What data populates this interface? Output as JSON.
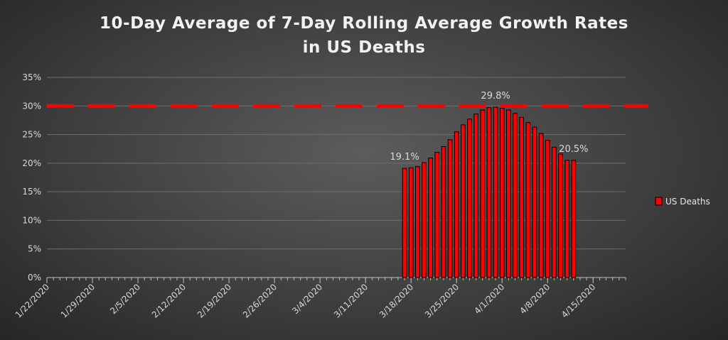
{
  "chart_data": {
    "type": "bar",
    "title_lines": [
      "10-Day Average of 7-Day Rolling Average Growth Rates",
      "in US Deaths"
    ],
    "xlabel": "",
    "ylabel": "",
    "ylim": [
      0,
      0.35
    ],
    "y_ticks": [
      "0%",
      "5%",
      "10%",
      "15%",
      "20%",
      "25%",
      "30%",
      "35%"
    ],
    "y_tick_values": [
      0,
      0.05,
      0.1,
      0.15,
      0.2,
      0.25,
      0.3,
      0.35
    ],
    "x_start": "1/22/2020",
    "x_end": "4/20/2020",
    "x_tick_labels": [
      "1/22/2020",
      "1/29/2020",
      "2/5/2020",
      "2/12/2020",
      "2/19/2020",
      "2/26/2020",
      "3/4/2020",
      "3/11/2020",
      "3/18/2020",
      "3/25/2020",
      "4/1/2020",
      "4/8/2020",
      "4/15/2020"
    ],
    "reference_line": {
      "value": 0.3,
      "color": "#ff0000",
      "style": "dashed"
    },
    "series": [
      {
        "name": "US Deaths",
        "color": "#ff0000",
        "x": [
          "3/17/2020",
          "3/18/2020",
          "3/19/2020",
          "3/20/2020",
          "3/21/2020",
          "3/22/2020",
          "3/23/2020",
          "3/24/2020",
          "3/25/2020",
          "3/26/2020",
          "3/27/2020",
          "3/28/2020",
          "3/29/2020",
          "3/30/2020",
          "3/31/2020",
          "4/1/2020",
          "4/2/2020",
          "4/3/2020",
          "4/4/2020",
          "4/5/2020",
          "4/6/2020",
          "4/7/2020",
          "4/8/2020",
          "4/9/2020",
          "4/10/2020",
          "4/11/2020",
          "4/12/2020"
        ],
        "values": [
          0.191,
          0.192,
          0.194,
          0.201,
          0.209,
          0.219,
          0.229,
          0.241,
          0.255,
          0.267,
          0.277,
          0.286,
          0.293,
          0.297,
          0.298,
          0.296,
          0.293,
          0.287,
          0.28,
          0.271,
          0.263,
          0.252,
          0.24,
          0.228,
          0.216,
          0.205,
          0.205
        ]
      }
    ],
    "data_labels": [
      {
        "x": "3/17/2020",
        "text": "19.1%"
      },
      {
        "x": "3/31/2020",
        "text": "29.8%"
      },
      {
        "x": "4/12/2020",
        "text": "20.5%"
      }
    ],
    "grid": true,
    "legend": {
      "position": "right",
      "label": "US Deaths"
    },
    "colors": {
      "background": "#404040",
      "grid": "#6e6e6e",
      "axis": "#bfbfbf",
      "text": "#d9d9d9"
    }
  }
}
